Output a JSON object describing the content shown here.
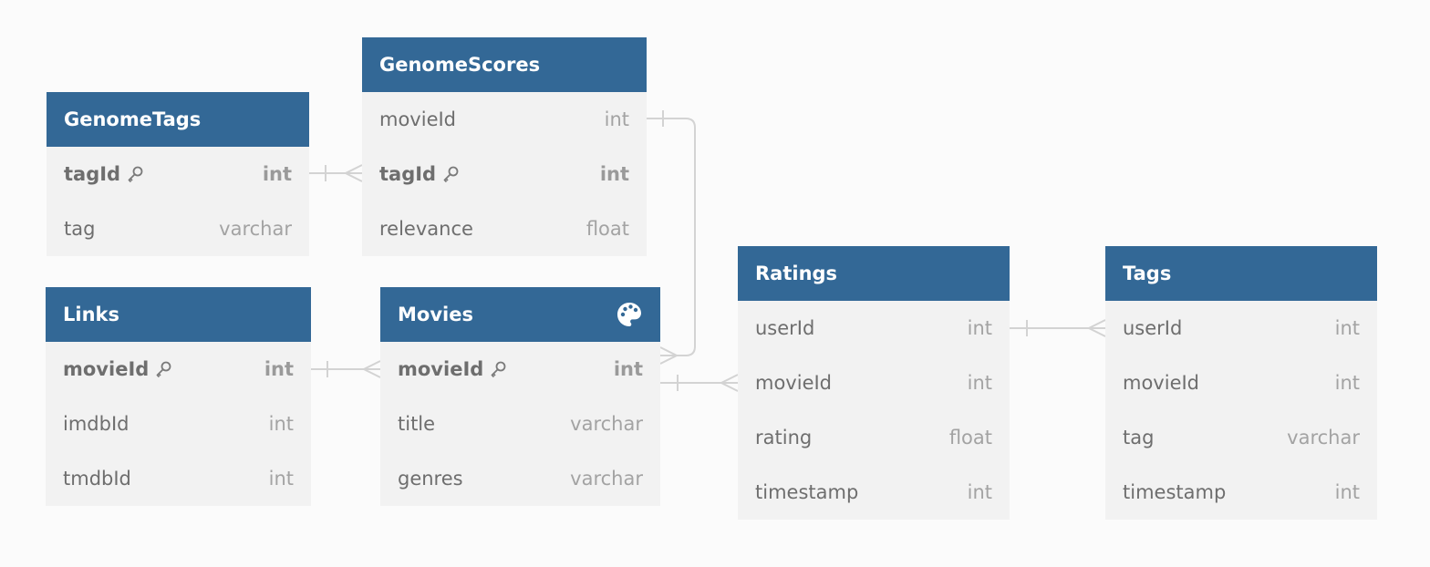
{
  "colors": {
    "header_bg": "#336896",
    "header_text": "#ffffff",
    "row_bg": "#f2f2f2",
    "column_name": "#6e6e6e",
    "column_type": "#a3a3a3",
    "connector": "#d3d3d3"
  },
  "tables": {
    "genometags": {
      "name": "GenomeTags",
      "columns": [
        {
          "name": "tagId",
          "type": "int",
          "pk": true
        },
        {
          "name": "tag",
          "type": "varchar",
          "pk": false
        }
      ]
    },
    "genomescores": {
      "name": "GenomeScores",
      "columns": [
        {
          "name": "movieId",
          "type": "int",
          "pk": false
        },
        {
          "name": "tagId",
          "type": "int",
          "pk": true
        },
        {
          "name": "relevance",
          "type": "float",
          "pk": false
        }
      ]
    },
    "links": {
      "name": "Links",
      "columns": [
        {
          "name": "movieId",
          "type": "int",
          "pk": true
        },
        {
          "name": "imdbId",
          "type": "int",
          "pk": false
        },
        {
          "name": "tmdbId",
          "type": "int",
          "pk": false
        }
      ]
    },
    "movies": {
      "name": "Movies",
      "header_icon": "palette-icon",
      "columns": [
        {
          "name": "movieId",
          "type": "int",
          "pk": true
        },
        {
          "name": "title",
          "type": "varchar",
          "pk": false
        },
        {
          "name": "genres",
          "type": "varchar",
          "pk": false
        }
      ]
    },
    "ratings": {
      "name": "Ratings",
      "columns": [
        {
          "name": "userId",
          "type": "int",
          "pk": false
        },
        {
          "name": "movieId",
          "type": "int",
          "pk": false
        },
        {
          "name": "rating",
          "type": "float",
          "pk": false
        },
        {
          "name": "timestamp",
          "type": "int",
          "pk": false
        }
      ]
    },
    "tags": {
      "name": "Tags",
      "columns": [
        {
          "name": "userId",
          "type": "int",
          "pk": false
        },
        {
          "name": "movieId",
          "type": "int",
          "pk": false
        },
        {
          "name": "tag",
          "type": "varchar",
          "pk": false
        },
        {
          "name": "timestamp",
          "type": "int",
          "pk": false
        }
      ]
    }
  },
  "relationships": [
    {
      "from": "GenomeTags.tagId",
      "to": "GenomeScores.tagId",
      "type": "one-to-many"
    },
    {
      "from": "GenomeScores.movieId",
      "to": "Movies.movieId",
      "type": "one-to-many"
    },
    {
      "from": "Links.movieId",
      "to": "Movies.movieId",
      "type": "one-to-many"
    },
    {
      "from": "Movies.movieId",
      "to": "Ratings.movieId",
      "type": "one-to-many"
    },
    {
      "from": "Ratings.userId",
      "to": "Tags.userId",
      "type": "one-to-many"
    }
  ]
}
